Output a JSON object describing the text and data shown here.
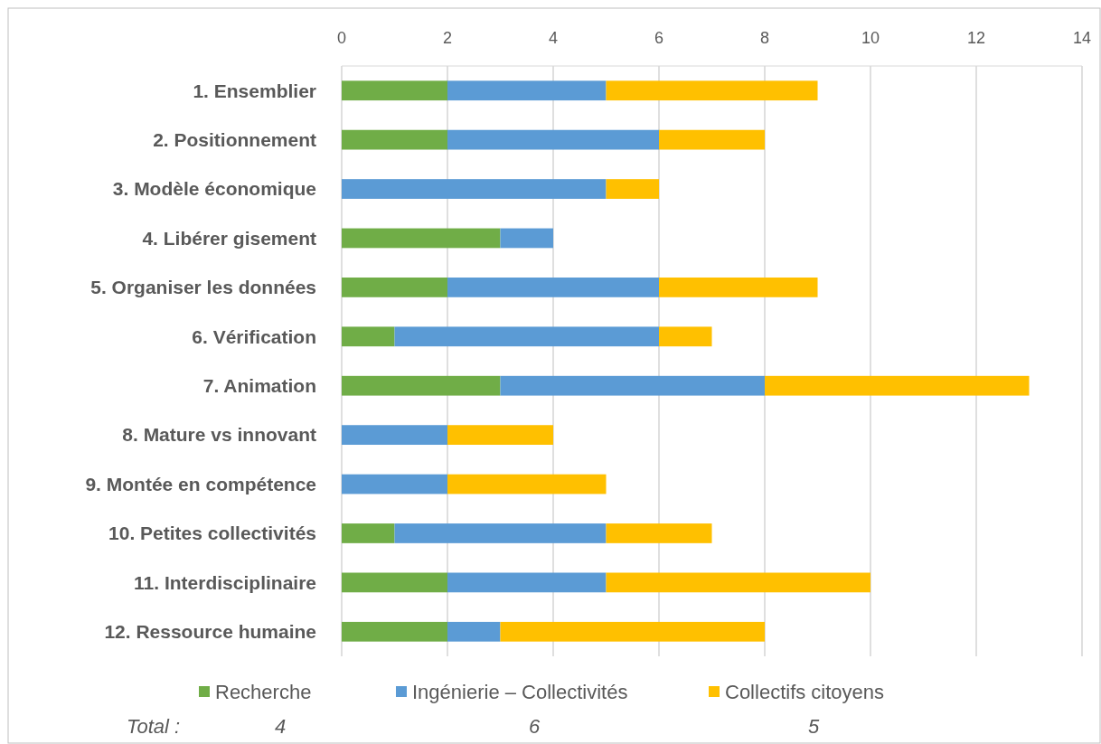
{
  "chart_data": {
    "type": "bar",
    "orientation": "horizontal",
    "stacked": true,
    "categories": [
      "1. Ensemblier",
      "2. Positionnement",
      "3. Modèle économique",
      "4. Libérer gisement",
      "5. Organiser les données",
      "6. Vérification",
      "7. Animation",
      "8. Mature vs innovant",
      "9. Montée en compétence",
      "10. Petites collectivités",
      "11. Interdisciplinaire",
      "12. Ressource humaine"
    ],
    "series": [
      {
        "name": "Recherche",
        "color": "#70ad47",
        "values": [
          2,
          2,
          0,
          3,
          2,
          1,
          3,
          0,
          0,
          1,
          2,
          2
        ]
      },
      {
        "name": "Ingénierie – Collectivités",
        "color": "#5b9bd5",
        "values": [
          3,
          4,
          5,
          1,
          4,
          5,
          5,
          2,
          2,
          4,
          3,
          1
        ]
      },
      {
        "name": "Collectifs citoyens",
        "color": "#ffc000",
        "values": [
          4,
          2,
          1,
          0,
          3,
          1,
          5,
          2,
          3,
          2,
          5,
          5
        ]
      }
    ],
    "xlim": [
      0,
      14
    ],
    "xticks": [
      0,
      2,
      4,
      6,
      8,
      10,
      12,
      14
    ],
    "grid": "x",
    "legend": "bottom",
    "annotations": [
      "Total :",
      "4",
      "6",
      "5"
    ]
  }
}
